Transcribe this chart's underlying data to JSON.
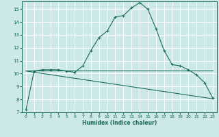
{
  "xlabel": "Humidex (Indice chaleur)",
  "background_color": "#cce8e8",
  "grid_color": "#ffffff",
  "line_color": "#1a6b5a",
  "xlim": [
    -0.5,
    23.5
  ],
  "ylim": [
    7,
    15.6
  ],
  "x_ticks": [
    0,
    1,
    2,
    3,
    4,
    5,
    6,
    7,
    8,
    9,
    10,
    11,
    12,
    13,
    14,
    15,
    16,
    17,
    18,
    19,
    20,
    21,
    22,
    23
  ],
  "y_ticks": [
    7,
    8,
    9,
    10,
    11,
    12,
    13,
    14,
    15
  ],
  "series1_x": [
    0,
    1,
    2,
    3,
    4,
    5,
    6,
    7,
    8,
    9,
    10,
    11,
    12,
    13,
    14,
    15,
    16,
    17,
    18,
    19,
    20,
    21,
    22,
    23
  ],
  "series1_y": [
    7.2,
    10.2,
    10.3,
    10.3,
    10.3,
    10.2,
    10.1,
    10.6,
    11.8,
    12.8,
    13.3,
    14.4,
    14.5,
    15.1,
    15.5,
    15.0,
    13.5,
    11.8,
    10.7,
    10.6,
    10.3,
    9.9,
    9.3,
    8.1
  ],
  "series2_x": [
    0,
    23
  ],
  "series2_y": [
    10.25,
    10.25
  ],
  "series3_x": [
    0,
    23
  ],
  "series3_y": [
    10.2,
    8.05
  ]
}
